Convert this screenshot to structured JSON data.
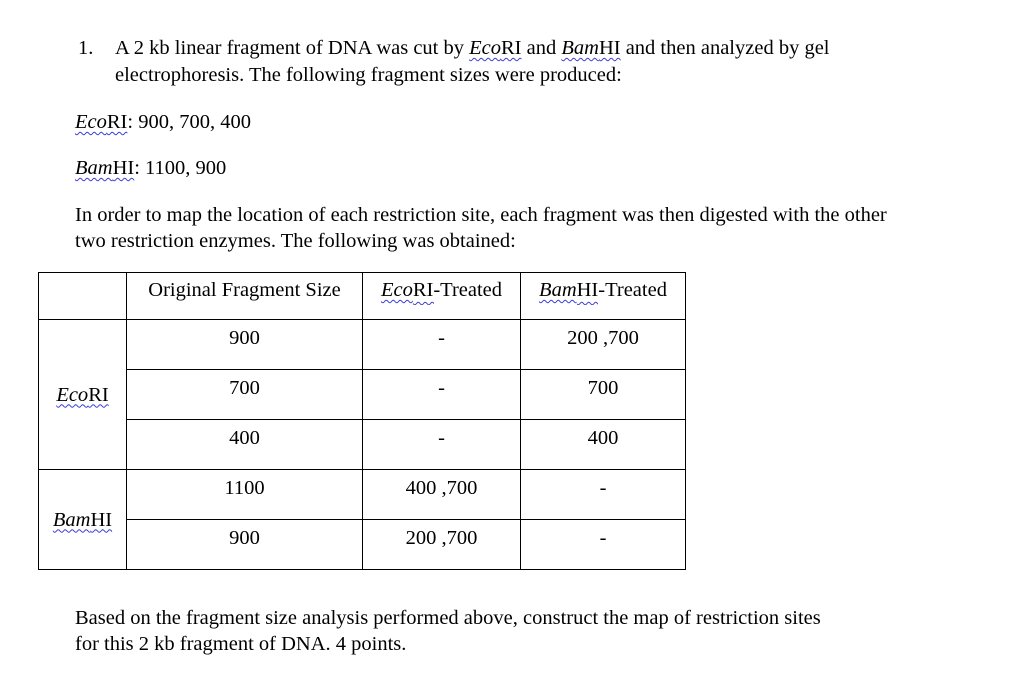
{
  "question": {
    "number": "1.",
    "line1": {
      "pre": "A 2 kb linear fragment of DNA was cut by ",
      "e1": "Eco",
      "e1b": "RI",
      "mid": " and ",
      "e2": "Bam",
      "e2b": "HI",
      "post": " and then analyzed by gel"
    },
    "line2": "electrophoresis. The following fragment sizes were produced:",
    "ecori": {
      "italic": "Eco",
      "roman": "RI",
      "values": ": 900, 700, 400"
    },
    "bamhi": {
      "italic": "Bam",
      "roman": "HI",
      "values": ": 1100, 900"
    },
    "para_line1": "In order to map the location of each restriction site, each fragment was then digested with the other",
    "para_line2": "two restriction enzymes. The following was obtained:",
    "closing_line1": "Based on the fragment size analysis performed above, construct the map of restriction sites",
    "closing_line2": "for this 2 kb fragment of DNA. 4 points."
  },
  "table": {
    "headers": {
      "original": "Original Fragment Size",
      "eco_italic": "Eco",
      "eco_rest": "RI-Treated",
      "bam_italic": "Bam",
      "bam_rest": "HI-Treated"
    },
    "groups": [
      {
        "enzyme_italic": "Eco",
        "enzyme_roman": "RI",
        "rows": [
          {
            "original": "900",
            "ecori": "-",
            "bamhi": "200 ,700"
          },
          {
            "original": "700",
            "ecori": "-",
            "bamhi": "700"
          },
          {
            "original": "400",
            "ecori": "-",
            "bamhi": "400"
          }
        ]
      },
      {
        "enzyme_italic": "Bam",
        "enzyme_roman": "HI",
        "rows": [
          {
            "original": "1100",
            "ecori": "400 ,700",
            "bamhi": "-"
          },
          {
            "original": "900",
            "ecori": "200 ,700",
            "bamhi": "-"
          }
        ]
      }
    ]
  }
}
